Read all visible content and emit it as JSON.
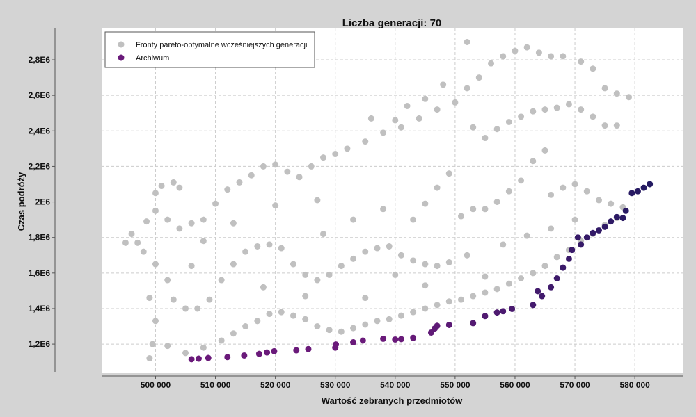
{
  "chart_data": {
    "type": "scatter",
    "title": "Liczba generacji: 70",
    "xlabel": "Wartość zebranych przedmiotów",
    "ylabel": "Czas podróży",
    "xlim": [
      491000,
      588000
    ],
    "ylim": [
      1040000,
      2980000
    ],
    "x_ticks": [
      500000,
      510000,
      520000,
      530000,
      540000,
      550000,
      560000,
      570000,
      580000
    ],
    "x_tick_labels": [
      "500 000",
      "510 000",
      "520 000",
      "530 000",
      "540 000",
      "550 000",
      "560 000",
      "570 000",
      "580 000"
    ],
    "y_ticks": [
      1200000,
      1400000,
      1600000,
      1800000,
      2000000,
      2200000,
      2400000,
      2600000,
      2800000
    ],
    "y_tick_labels": [
      "1,2E6",
      "1,4E6",
      "1,6E6",
      "1,8E6",
      "2E6",
      "2,2E6",
      "2,4E6",
      "2,6E6",
      "2,8E6"
    ],
    "grid": true,
    "legend_position": "top-left",
    "colors": {
      "previous": "#c0c0c0",
      "archive_start": "#6a1a7a",
      "archive_end": "#1a1a5e",
      "background": "#ffffff",
      "grid": "#cccccc"
    },
    "series": [
      {
        "name": "Fronty pareto-optymalne wcześniejszych generacji",
        "values": [
          [
            495000,
            1770000
          ],
          [
            497000,
            1770000
          ],
          [
            498500,
            1890000
          ],
          [
            500000,
            2050000
          ],
          [
            501000,
            2090000
          ],
          [
            503000,
            2110000
          ],
          [
            504000,
            2080000
          ],
          [
            500000,
            1950000
          ],
          [
            502000,
            1900000
          ],
          [
            504000,
            1850000
          ],
          [
            506000,
            1880000
          ],
          [
            508000,
            1900000
          ],
          [
            510000,
            1990000
          ],
          [
            512000,
            2070000
          ],
          [
            514000,
            2110000
          ],
          [
            516000,
            2150000
          ],
          [
            518000,
            2200000
          ],
          [
            520000,
            2210000
          ],
          [
            522000,
            2170000
          ],
          [
            524000,
            2140000
          ],
          [
            526000,
            2200000
          ],
          [
            528000,
            2250000
          ],
          [
            530000,
            2270000
          ],
          [
            532000,
            2300000
          ],
          [
            535000,
            2340000
          ],
          [
            538000,
            2390000
          ],
          [
            541000,
            2420000
          ],
          [
            544000,
            2470000
          ],
          [
            547000,
            2520000
          ],
          [
            550000,
            2560000
          ],
          [
            552000,
            2640000
          ],
          [
            554000,
            2700000
          ],
          [
            556000,
            2780000
          ],
          [
            558000,
            2820000
          ],
          [
            560000,
            2850000
          ],
          [
            562000,
            2870000
          ],
          [
            564000,
            2840000
          ],
          [
            566000,
            2820000
          ],
          [
            568000,
            2820000
          ],
          [
            552000,
            2900000
          ],
          [
            571000,
            2790000
          ],
          [
            573000,
            2750000
          ],
          [
            575000,
            2640000
          ],
          [
            577000,
            2610000
          ],
          [
            579000,
            2590000
          ],
          [
            548000,
            2660000
          ],
          [
            545000,
            2580000
          ],
          [
            542000,
            2540000
          ],
          [
            540000,
            2460000
          ],
          [
            536000,
            2470000
          ],
          [
            553000,
            2420000
          ],
          [
            555000,
            2360000
          ],
          [
            557000,
            2410000
          ],
          [
            559000,
            2450000
          ],
          [
            561000,
            2480000
          ],
          [
            563000,
            2510000
          ],
          [
            565000,
            2520000
          ],
          [
            567000,
            2530000
          ],
          [
            569000,
            2550000
          ],
          [
            571000,
            2520000
          ],
          [
            573000,
            2480000
          ],
          [
            575000,
            2430000
          ],
          [
            577000,
            2430000
          ],
          [
            565000,
            2290000
          ],
          [
            563000,
            2230000
          ],
          [
            561000,
            2120000
          ],
          [
            559000,
            2060000
          ],
          [
            557000,
            2000000
          ],
          [
            555000,
            1960000
          ],
          [
            553000,
            1960000
          ],
          [
            551000,
            1920000
          ],
          [
            549000,
            2160000
          ],
          [
            547000,
            2080000
          ],
          [
            545000,
            1990000
          ],
          [
            543000,
            1900000
          ],
          [
            566000,
            2040000
          ],
          [
            568000,
            2080000
          ],
          [
            570000,
            2100000
          ],
          [
            572000,
            2060000
          ],
          [
            574000,
            2010000
          ],
          [
            576000,
            1990000
          ],
          [
            578000,
            1970000
          ],
          [
            496000,
            1820000
          ],
          [
            498000,
            1720000
          ],
          [
            500000,
            1650000
          ],
          [
            502000,
            1560000
          ],
          [
            503000,
            1450000
          ],
          [
            505000,
            1400000
          ],
          [
            507000,
            1400000
          ],
          [
            509000,
            1450000
          ],
          [
            511000,
            1560000
          ],
          [
            513000,
            1650000
          ],
          [
            515000,
            1720000
          ],
          [
            517000,
            1750000
          ],
          [
            519000,
            1760000
          ],
          [
            521000,
            1740000
          ],
          [
            523000,
            1650000
          ],
          [
            525000,
            1590000
          ],
          [
            527000,
            1560000
          ],
          [
            529000,
            1590000
          ],
          [
            531000,
            1640000
          ],
          [
            533000,
            1680000
          ],
          [
            535000,
            1720000
          ],
          [
            537000,
            1740000
          ],
          [
            539000,
            1750000
          ],
          [
            541000,
            1700000
          ],
          [
            543000,
            1670000
          ],
          [
            545000,
            1650000
          ],
          [
            547000,
            1640000
          ],
          [
            549000,
            1660000
          ],
          [
            499000,
            1460000
          ],
          [
            500000,
            1330000
          ],
          [
            499500,
            1200000
          ],
          [
            502000,
            1190000
          ],
          [
            499000,
            1120000
          ],
          [
            505000,
            1150000
          ],
          [
            508000,
            1180000
          ],
          [
            511000,
            1220000
          ],
          [
            513000,
            1260000
          ],
          [
            515000,
            1300000
          ],
          [
            517000,
            1330000
          ],
          [
            519000,
            1370000
          ],
          [
            521000,
            1380000
          ],
          [
            523000,
            1360000
          ],
          [
            525000,
            1340000
          ],
          [
            527000,
            1300000
          ],
          [
            529000,
            1280000
          ],
          [
            531000,
            1270000
          ],
          [
            533000,
            1290000
          ],
          [
            535000,
            1310000
          ],
          [
            537000,
            1330000
          ],
          [
            539000,
            1340000
          ],
          [
            541000,
            1360000
          ],
          [
            543000,
            1380000
          ],
          [
            545000,
            1400000
          ],
          [
            547000,
            1420000
          ],
          [
            549000,
            1440000
          ],
          [
            551000,
            1450000
          ],
          [
            553000,
            1470000
          ],
          [
            555000,
            1490000
          ],
          [
            557000,
            1510000
          ],
          [
            559000,
            1540000
          ],
          [
            561000,
            1570000
          ],
          [
            563000,
            1600000
          ],
          [
            565000,
            1640000
          ],
          [
            567000,
            1690000
          ],
          [
            569000,
            1730000
          ],
          [
            571000,
            1780000
          ],
          [
            573000,
            1820000
          ],
          [
            575000,
            1870000
          ],
          [
            577000,
            1910000
          ],
          [
            525000,
            1470000
          ],
          [
            535000,
            1460000
          ],
          [
            545000,
            1530000
          ],
          [
            555000,
            1580000
          ],
          [
            528000,
            1820000
          ],
          [
            533000,
            1900000
          ],
          [
            538000,
            1960000
          ],
          [
            527000,
            2010000
          ],
          [
            520000,
            1980000
          ],
          [
            513000,
            1880000
          ],
          [
            508000,
            1780000
          ],
          [
            506000,
            1640000
          ],
          [
            518000,
            1520000
          ],
          [
            540000,
            1590000
          ],
          [
            552000,
            1700000
          ],
          [
            558000,
            1760000
          ],
          [
            562000,
            1810000
          ],
          [
            566000,
            1850000
          ],
          [
            570000,
            1900000
          ]
        ]
      },
      {
        "name": "Archiwum",
        "values": [
          [
            506000,
            1115000
          ],
          [
            507200,
            1118000
          ],
          [
            508800,
            1122000
          ],
          [
            512000,
            1127000
          ],
          [
            514800,
            1136000
          ],
          [
            517300,
            1145000
          ],
          [
            518600,
            1153000
          ],
          [
            519800,
            1160000
          ],
          [
            523500,
            1165000
          ],
          [
            525500,
            1172000
          ],
          [
            530000,
            1180000
          ],
          [
            530100,
            1198000
          ],
          [
            533000,
            1210000
          ],
          [
            534600,
            1220000
          ],
          [
            538000,
            1230000
          ],
          [
            540000,
            1226000
          ],
          [
            541000,
            1228000
          ],
          [
            543000,
            1235000
          ],
          [
            546000,
            1265000
          ],
          [
            546600,
            1288000
          ],
          [
            547000,
            1303000
          ],
          [
            549000,
            1308000
          ],
          [
            553000,
            1318000
          ],
          [
            555000,
            1358000
          ],
          [
            557000,
            1378000
          ],
          [
            558000,
            1385000
          ],
          [
            559500,
            1398000
          ],
          [
            563000,
            1420000
          ],
          [
            564500,
            1470000
          ],
          [
            566000,
            1520000
          ],
          [
            567000,
            1570000
          ],
          [
            568000,
            1630000
          ],
          [
            569000,
            1680000
          ],
          [
            569500,
            1730000
          ],
          [
            571000,
            1760000
          ],
          [
            572000,
            1800000
          ],
          [
            573000,
            1825000
          ],
          [
            574000,
            1840000
          ],
          [
            575000,
            1860000
          ],
          [
            576000,
            1890000
          ],
          [
            577000,
            1915000
          ],
          [
            578500,
            1950000
          ],
          [
            579500,
            2050000
          ],
          [
            580500,
            2060000
          ],
          [
            581500,
            2080000
          ],
          [
            582500,
            2100000
          ],
          [
            578000,
            1910000
          ],
          [
            570500,
            1800000
          ],
          [
            563800,
            1498000
          ]
        ]
      }
    ]
  }
}
